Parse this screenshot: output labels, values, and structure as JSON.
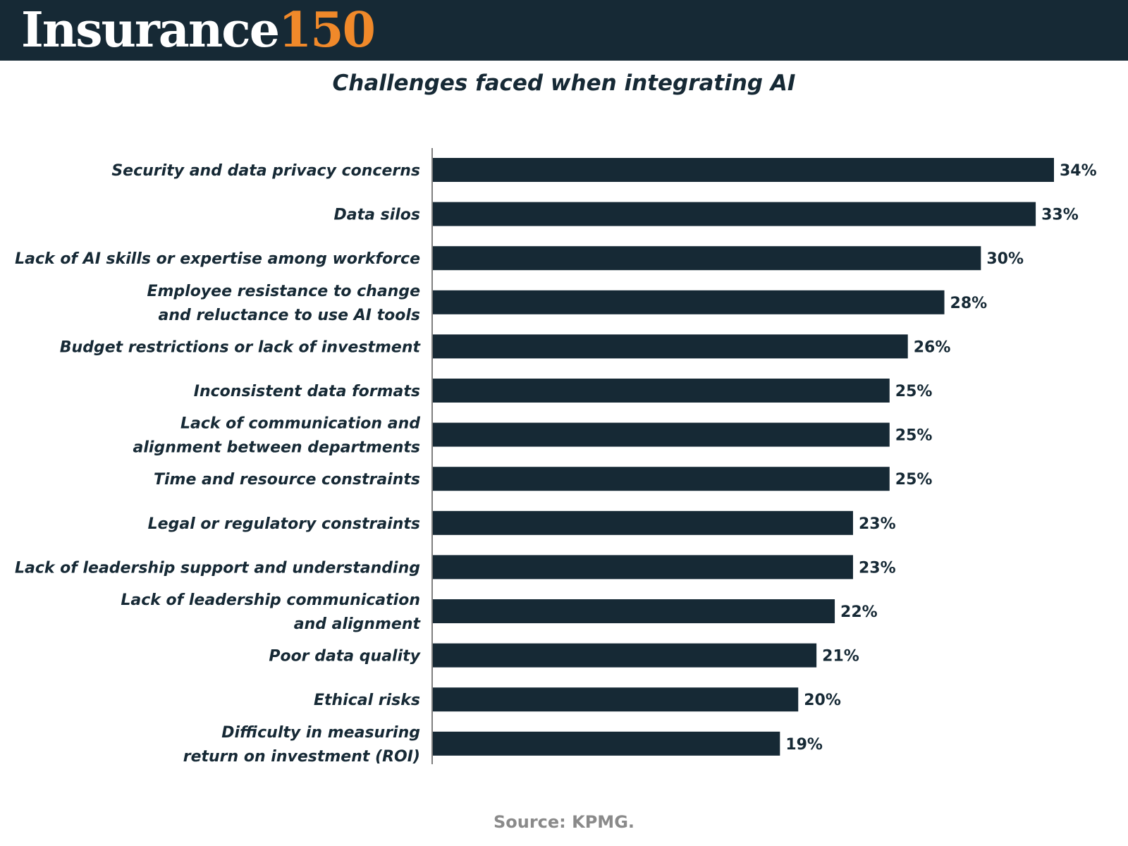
{
  "header": {
    "logo_word": "Insurance",
    "logo_number": "150",
    "background_color": "#162935",
    "accent_color": "#f0892a"
  },
  "chart_data": {
    "type": "bar",
    "orientation": "horizontal",
    "title": "Challenges faced when integrating AI",
    "categories": [
      [
        "Security and data privacy concerns"
      ],
      [
        "Data silos"
      ],
      [
        "Lack of AI skills or expertise among workforce"
      ],
      [
        "Employee resistance to change",
        "and reluctance to use AI tools"
      ],
      [
        "Budget restrictions or lack of investment"
      ],
      [
        "Inconsistent data formats"
      ],
      [
        "Lack of communication and",
        "alignment between departments"
      ],
      [
        "Time and resource constraints"
      ],
      [
        "Legal or regulatory constraints"
      ],
      [
        "Lack of leadership support and understanding"
      ],
      [
        "Lack of leadership communication",
        "and alignment"
      ],
      [
        "Poor data quality"
      ],
      [
        "Ethical risks"
      ],
      [
        "Difficulty in measuring",
        "return on investment (ROI)"
      ]
    ],
    "values": [
      34,
      33,
      30,
      28,
      26,
      25,
      25,
      25,
      23,
      23,
      22,
      21,
      20,
      19
    ],
    "value_labels": [
      "34%",
      "33%",
      "30%",
      "28%",
      "26%",
      "25%",
      "25%",
      "25%",
      "23%",
      "23%",
      "22%",
      "21%",
      "20%",
      "19%"
    ],
    "xlim": [
      0,
      34
    ],
    "bar_color": "#162935",
    "grid": false,
    "legend": "none"
  },
  "footer": {
    "source": "Source: KPMG."
  }
}
